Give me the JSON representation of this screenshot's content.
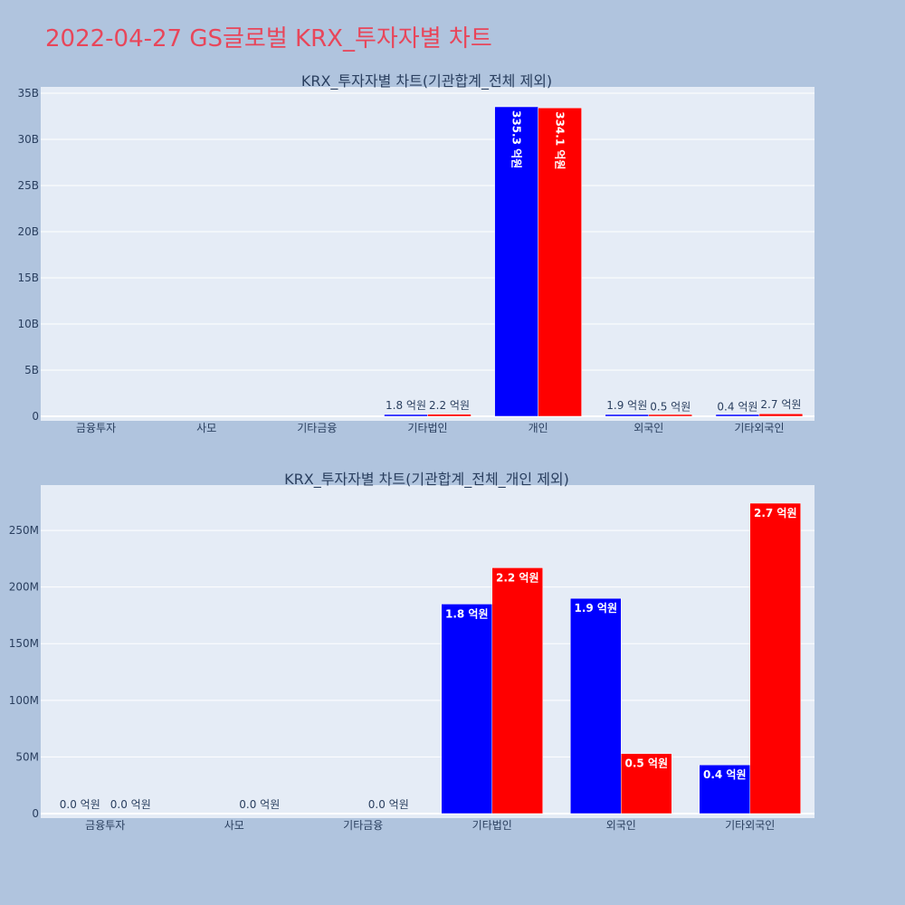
{
  "page_title": "2022-04-27 GS글로벌 KRX_투자자별 차트",
  "colors": {
    "background": "#b0c4de",
    "plot_bg": "#e5ecf6",
    "title": "#e8465a",
    "series_blue": "#0000ff",
    "series_red": "#ff0000"
  },
  "chart_data": [
    {
      "type": "bar",
      "title": "KRX_투자자별 차트(기관합계_전체 제외)",
      "categories": [
        "금융투자",
        "사모",
        "기타금융",
        "기타법인",
        "개인",
        "외국인",
        "기타외국인"
      ],
      "ylim": [
        0,
        35000000000
      ],
      "yticks": [
        0,
        5000000000,
        10000000000,
        15000000000,
        20000000000,
        25000000000,
        30000000000,
        35000000000
      ],
      "ytick_labels": [
        "0",
        "5B",
        "10B",
        "15B",
        "20B",
        "25B",
        "30B",
        "35B"
      ],
      "grid": true,
      "series": [
        {
          "color": "#0000ff",
          "values": [
            0,
            0,
            0,
            180000000,
            33530000000,
            190000000,
            40000000
          ],
          "labels": [
            "",
            "",
            "",
            "1.8 억원",
            "335.3 억원",
            "1.9 억원",
            "0.4 억원"
          ]
        },
        {
          "color": "#ff0000",
          "values": [
            0,
            0,
            0,
            220000000,
            33410000000,
            50000000,
            270000000
          ],
          "labels": [
            "",
            "",
            "",
            "2.2 억원",
            "334.1 억원",
            "0.5 억원",
            "2.7 억원"
          ]
        }
      ]
    },
    {
      "type": "bar",
      "title": "KRX_투자자별 차트(기관합계_전체_개인 제외)",
      "categories": [
        "금융투자",
        "사모",
        "기타금융",
        "기타법인",
        "외국인",
        "기타외국인"
      ],
      "ylim": [
        0,
        290000000
      ],
      "yticks": [
        0,
        50000000,
        100000000,
        150000000,
        200000000,
        250000000
      ],
      "ytick_labels": [
        "0",
        "50M",
        "100M",
        "150M",
        "200M",
        "250M"
      ],
      "grid": true,
      "series": [
        {
          "color": "#0000ff",
          "values": [
            0,
            0,
            0,
            185000000,
            190000000,
            43000000
          ],
          "labels": [
            "0.0 억원",
            "",
            "",
            "1.8 억원",
            "1.9 억원",
            "0.4 억원"
          ]
        },
        {
          "color": "#ff0000",
          "values": [
            0,
            0,
            0,
            217000000,
            53000000,
            274000000
          ],
          "labels": [
            "0.0 억원",
            "0.0 억원",
            "0.0 억원",
            "2.2 억원",
            "0.5 억원",
            "2.7 억원"
          ]
        }
      ]
    }
  ]
}
